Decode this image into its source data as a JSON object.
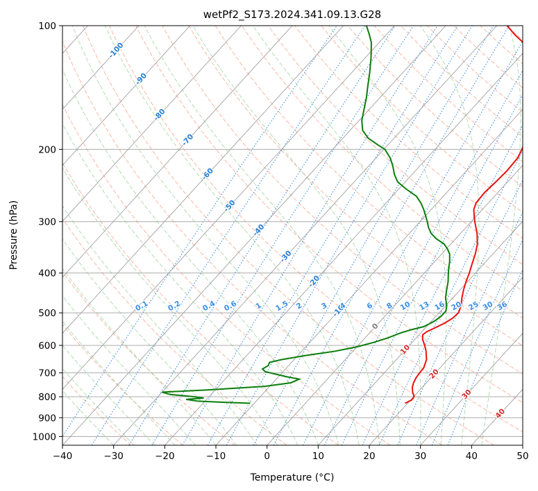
{
  "chart_data": {
    "type": "line",
    "chart_kind": "skew-T log-p diagram",
    "title": "wetPf2_S173.2024.341.09.13.G28",
    "xlabel": "Temperature (°C)",
    "ylabel": "Pressure (hPa)",
    "xlim": [
      -40,
      50
    ],
    "ylim": [
      1050,
      100
    ],
    "y_scale": "log",
    "grid": true,
    "x_ticks": [
      -40,
      -30,
      -20,
      -10,
      0,
      10,
      20,
      30,
      40,
      50
    ],
    "x_tick_labels": [
      "−40",
      "−30",
      "−20",
      "−10",
      "0",
      "10",
      "20",
      "30",
      "40",
      "50"
    ],
    "y_ticks": [
      100,
      200,
      300,
      400,
      500,
      600,
      700,
      800,
      900,
      1000
    ],
    "y_tick_labels": [
      "100",
      "200",
      "300",
      "400",
      "500",
      "600",
      "700",
      "800",
      "900",
      "1000"
    ],
    "colors": {
      "temperature": "#e8120e",
      "dewpoint": "#0a7d0a",
      "isotherm": "#a0a0a0",
      "dry_adiabat": "#f7a48c",
      "moist_adiabat": "#98cf98",
      "mixing_ratio": "#3a8ee6",
      "label_blue": "#2a7fd0",
      "label_red": "#d03030",
      "label_gray": "#808080"
    },
    "series": [
      {
        "key": "temperature",
        "points": [
          [
            830,
            19.5
          ],
          [
            815,
            20.2
          ],
          [
            800,
            20.1
          ],
          [
            780,
            19.0
          ],
          [
            760,
            18.1
          ],
          [
            740,
            17.5
          ],
          [
            720,
            17.1
          ],
          [
            700,
            16.9
          ],
          [
            680,
            16.8
          ],
          [
            650,
            15.9
          ],
          [
            620,
            14.3
          ],
          [
            600,
            13.0
          ],
          [
            580,
            11.5
          ],
          [
            565,
            10.7
          ],
          [
            555,
            11.0
          ],
          [
            545,
            11.8
          ],
          [
            530,
            12.9
          ],
          [
            515,
            13.6
          ],
          [
            500,
            13.8
          ],
          [
            480,
            13.0
          ],
          [
            460,
            11.8
          ],
          [
            440,
            10.7
          ],
          [
            420,
            9.7
          ],
          [
            400,
            8.8
          ],
          [
            380,
            7.7
          ],
          [
            360,
            6.6
          ],
          [
            340,
            5.2
          ],
          [
            320,
            3.2
          ],
          [
            300,
            0.7
          ],
          [
            290,
            -0.5
          ],
          [
            280,
            -1.7
          ],
          [
            270,
            -2.4
          ],
          [
            255,
            -2.6
          ],
          [
            240,
            -2.3
          ],
          [
            225,
            -2.1
          ],
          [
            210,
            -2.3
          ],
          [
            200,
            -3.0
          ],
          [
            190,
            -4.0
          ],
          [
            180,
            -5.5
          ],
          [
            170,
            -7.3
          ],
          [
            160,
            -8.9
          ],
          [
            150,
            -10.5
          ],
          [
            140,
            -12.2
          ],
          [
            130,
            -14.2
          ],
          [
            120,
            -17.0
          ],
          [
            115,
            -19.0
          ],
          [
            110,
            -21.8
          ],
          [
            105,
            -25.0
          ],
          [
            100,
            -28.0
          ]
        ]
      },
      {
        "key": "dewpoint",
        "points": [
          [
            830,
            -10.8
          ],
          [
            825,
            -16.5
          ],
          [
            820,
            -21.5
          ],
          [
            812,
            -24.0
          ],
          [
            806,
            -20.8
          ],
          [
            800,
            -23.0
          ],
          [
            790,
            -28.0
          ],
          [
            780,
            -30.0
          ],
          [
            770,
            -21.5
          ],
          [
            755,
            -11.0
          ],
          [
            740,
            -6.5
          ],
          [
            725,
            -5.5
          ],
          [
            715,
            -8.5
          ],
          [
            705,
            -11.0
          ],
          [
            695,
            -13.5
          ],
          [
            685,
            -14.5
          ],
          [
            672,
            -14.0
          ],
          [
            660,
            -14.3
          ],
          [
            650,
            -12.5
          ],
          [
            635,
            -8.5
          ],
          [
            620,
            -3.5
          ],
          [
            605,
            0.0
          ],
          [
            590,
            2.5
          ],
          [
            575,
            4.5
          ],
          [
            560,
            6.0
          ],
          [
            550,
            7.5
          ],
          [
            540,
            9.5
          ],
          [
            525,
            10.5
          ],
          [
            510,
            11.0
          ],
          [
            495,
            11.0
          ],
          [
            480,
            10.2
          ],
          [
            460,
            8.6
          ],
          [
            440,
            7.4
          ],
          [
            420,
            6.2
          ],
          [
            400,
            4.7
          ],
          [
            385,
            3.6
          ],
          [
            375,
            2.9
          ],
          [
            360,
            1.6
          ],
          [
            350,
            0.3
          ],
          [
            340,
            -1.3
          ],
          [
            330,
            -3.8
          ],
          [
            320,
            -5.8
          ],
          [
            310,
            -7.3
          ],
          [
            300,
            -8.6
          ],
          [
            290,
            -10.0
          ],
          [
            280,
            -11.5
          ],
          [
            270,
            -13.2
          ],
          [
            260,
            -15.3
          ],
          [
            250,
            -18.5
          ],
          [
            240,
            -21.5
          ],
          [
            230,
            -23.5
          ],
          [
            220,
            -25.2
          ],
          [
            210,
            -27.2
          ],
          [
            200,
            -29.8
          ],
          [
            195,
            -32.0
          ],
          [
            188,
            -35.0
          ],
          [
            180,
            -37.5
          ],
          [
            170,
            -39.5
          ],
          [
            160,
            -41.0
          ],
          [
            150,
            -42.6
          ],
          [
            140,
            -44.5
          ],
          [
            130,
            -46.5
          ],
          [
            120,
            -48.8
          ],
          [
            110,
            -51.5
          ],
          [
            105,
            -53.4
          ],
          [
            100,
            -55.5
          ]
        ]
      }
    ],
    "isotherm_labels": [
      {
        "text": "-100",
        "color": "label_blue",
        "t": -100,
        "p": 115
      },
      {
        "text": "-90",
        "color": "label_blue",
        "t": -90,
        "p": 135
      },
      {
        "text": "-80",
        "color": "label_blue",
        "t": -80,
        "p": 165
      },
      {
        "text": "-70",
        "color": "label_blue",
        "t": -70,
        "p": 190
      },
      {
        "text": "-60",
        "color": "label_blue",
        "t": -60,
        "p": 230
      },
      {
        "text": "-50",
        "color": "label_blue",
        "t": -50,
        "p": 275
      },
      {
        "text": "-40",
        "color": "label_blue",
        "t": -40,
        "p": 315
      },
      {
        "text": "-30",
        "color": "label_blue",
        "t": -30,
        "p": 365
      },
      {
        "text": "-20",
        "color": "label_blue",
        "t": -20,
        "p": 420
      },
      {
        "text": "-10",
        "color": "label_blue",
        "t": -10,
        "p": 495
      },
      {
        "text": "0",
        "color": "label_gray",
        "t": 0,
        "p": 540
      },
      {
        "text": "10",
        "color": "label_red",
        "t": 10,
        "p": 615
      },
      {
        "text": "20",
        "color": "label_red",
        "t": 20,
        "p": 705
      },
      {
        "text": "30",
        "color": "label_red",
        "t": 30,
        "p": 790
      },
      {
        "text": "40",
        "color": "label_red",
        "t": 40,
        "p": 880
      }
    ],
    "mixing_ratio_lines": [
      "0.1",
      "0.2",
      "0.4",
      "0.6",
      "1",
      "1.5",
      "2",
      "3",
      "4",
      "6",
      "8",
      "10",
      "13",
      "16",
      "20",
      "25",
      "30",
      "36"
    ],
    "mixing_ratio_label_pressure": 500
  }
}
